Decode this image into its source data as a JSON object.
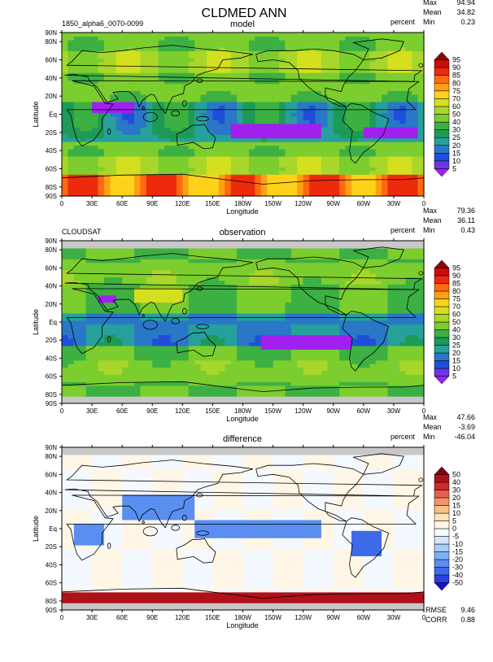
{
  "figure": {
    "title": "CLDMED ANN"
  },
  "panels": [
    {
      "id": "model",
      "left_label": "1850_alpha6_0070-0099",
      "center_label": "model",
      "units": "percent",
      "stats": [
        {
          "label": "Max",
          "value": "94.94"
        },
        {
          "label": "Mean",
          "value": "34.82"
        },
        {
          "label": "Min",
          "value": "0.23"
        }
      ]
    },
    {
      "id": "observation",
      "left_label": "CLOUDSAT",
      "center_label": "observation",
      "units": "percent",
      "stats": [
        {
          "label": "Max",
          "value": "79.36"
        },
        {
          "label": "Mean",
          "value": "36.11"
        },
        {
          "label": "Min",
          "value": "0.43"
        }
      ]
    },
    {
      "id": "difference",
      "left_label": "",
      "center_label": "difference",
      "units": "percent",
      "stats": [
        {
          "label": "Max",
          "value": "47.66"
        },
        {
          "label": "Mean",
          "value": "-3.69"
        },
        {
          "label": "Min",
          "value": "-46.04"
        }
      ],
      "bottom_stats": [
        {
          "label": "RMSE",
          "value": "9.46"
        },
        {
          "label": "CORR",
          "value": "0.88"
        }
      ]
    }
  ],
  "chart_data": [
    {
      "type": "heatmap",
      "title": "model",
      "xlabel": "Longitude",
      "ylabel": "Latitude",
      "xlim": [
        0,
        360
      ],
      "ylim": [
        -90,
        90
      ],
      "x_ticks": [
        "0",
        "30E",
        "60E",
        "90E",
        "120E",
        "150E",
        "180W",
        "150W",
        "120W",
        "90W",
        "60W",
        "30W",
        "0"
      ],
      "y_ticks": [
        "90S",
        "80S",
        "60S",
        "40S",
        "20S",
        "Eq",
        "20N",
        "40N",
        "60N",
        "80N",
        "90N"
      ],
      "colorbar_levels": [
        "5",
        "10",
        "15",
        "20",
        "25",
        "30",
        "40",
        "50",
        "60",
        "70",
        "75",
        "80",
        "85",
        "90",
        "95"
      ],
      "colorbar_colors": [
        "#a020f0",
        "#6a36e8",
        "#1f4fd8",
        "#2a77c8",
        "#27a09b",
        "#1e9a57",
        "#3cb043",
        "#7ccd2e",
        "#a8d62a",
        "#d4df1f",
        "#ffd21a",
        "#ff9f14",
        "#ff6a10",
        "#ee2a0c",
        "#c80d0d",
        "#8c0a0a"
      ],
      "description_values": {
        "tropics_band": "15-20",
        "storm_track": "40-55",
        "antarctic_band": "75-90"
      }
    },
    {
      "type": "heatmap",
      "title": "observation",
      "xlabel": "Longitude",
      "ylabel": "Latitude",
      "xlim": [
        0,
        360
      ],
      "ylim": [
        -90,
        90
      ],
      "x_ticks": [
        "0",
        "30E",
        "60E",
        "90E",
        "120E",
        "150E",
        "180W",
        "150W",
        "120W",
        "90W",
        "60W",
        "30W",
        "0"
      ],
      "y_ticks": [
        "90S",
        "80S",
        "60S",
        "40S",
        "20S",
        "Eq",
        "20N",
        "40N",
        "60N",
        "80N",
        "90N"
      ],
      "colorbar_levels": [
        "5",
        "10",
        "15",
        "20",
        "25",
        "30",
        "40",
        "50",
        "60",
        "70",
        "75",
        "80",
        "85",
        "90",
        "95"
      ],
      "colorbar_colors": [
        "#a020f0",
        "#6a36e8",
        "#1f4fd8",
        "#2a77c8",
        "#27a09b",
        "#1e9a57",
        "#3cb043",
        "#7ccd2e",
        "#a8d62a",
        "#d4df1f",
        "#ffd21a",
        "#ff9f14",
        "#ff6a10",
        "#ee2a0c",
        "#c80d0d",
        "#8c0a0a"
      ]
    },
    {
      "type": "heatmap",
      "title": "difference",
      "xlabel": "Longitude",
      "ylabel": "Latitude",
      "xlim": [
        0,
        360
      ],
      "ylim": [
        -90,
        90
      ],
      "x_ticks": [
        "0",
        "30E",
        "60E",
        "90E",
        "120E",
        "150E",
        "180W",
        "150W",
        "120W",
        "90W",
        "60W",
        "30W",
        "0"
      ],
      "y_ticks": [
        "90S",
        "80S",
        "60S",
        "40S",
        "20S",
        "Eq",
        "20N",
        "40N",
        "60N",
        "80N",
        "90N"
      ],
      "colorbar_levels": [
        "-50",
        "-40",
        "-30",
        "-20",
        "-15",
        "-10",
        "-5",
        "0",
        "5",
        "10",
        "15",
        "20",
        "30",
        "40",
        "50"
      ],
      "colorbar_colors": [
        "#1a0fd0",
        "#2a3fe0",
        "#3c6ae8",
        "#5a8ef0",
        "#7fb0f5",
        "#a9cdf8",
        "#d3e6fb",
        "#f4f9ff",
        "#fff6e6",
        "#fde2b8",
        "#f9c08a",
        "#f29466",
        "#e3604a",
        "#cc2b2b",
        "#b0101a",
        "#8a0010"
      ]
    }
  ]
}
